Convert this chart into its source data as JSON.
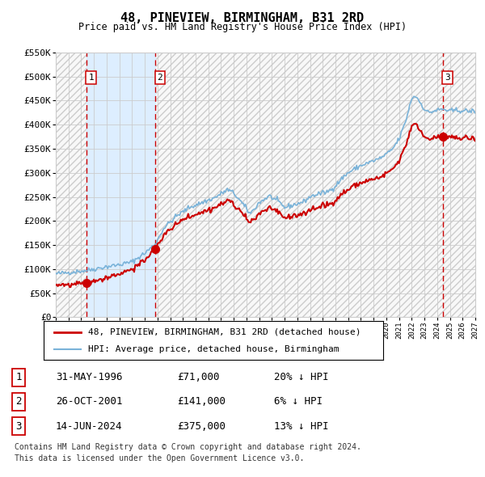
{
  "title": "48, PINEVIEW, BIRMINGHAM, B31 2RD",
  "subtitle": "Price paid vs. HM Land Registry's House Price Index (HPI)",
  "ylabel_ticks": [
    "£0",
    "£50K",
    "£100K",
    "£150K",
    "£200K",
    "£250K",
    "£300K",
    "£350K",
    "£400K",
    "£450K",
    "£500K",
    "£550K"
  ],
  "ytick_values": [
    0,
    50000,
    100000,
    150000,
    200000,
    250000,
    300000,
    350000,
    400000,
    450000,
    500000,
    550000
  ],
  "xmin": 1994,
  "xmax": 2027,
  "ymin": 0,
  "ymax": 550000,
  "purchases": [
    {
      "num": 1,
      "date": "31-MAY-1996",
      "year": 1996.41,
      "price": 71000,
      "hpi_str": "20% ↓ HPI"
    },
    {
      "num": 2,
      "date": "26-OCT-2001",
      "year": 2001.82,
      "price": 141000,
      "hpi_str": "6% ↓ HPI"
    },
    {
      "num": 3,
      "date": "14-JUN-2024",
      "year": 2024.45,
      "price": 375000,
      "hpi_str": "13% ↓ HPI"
    }
  ],
  "legend_line1": "48, PINEVIEW, BIRMINGHAM, B31 2RD (detached house)",
  "legend_line2": "HPI: Average price, detached house, Birmingham",
  "legend_color1": "#cc0000",
  "legend_color2": "#7ab3d9",
  "footer_line1": "Contains HM Land Registry data © Crown copyright and database right 2024.",
  "footer_line2": "This data is licensed under the Open Government Licence v3.0.",
  "bg_color": "#ffffff",
  "grid_color": "#cccccc",
  "shaded_color": "#ddeeff",
  "red_color": "#cc0000",
  "blue_color": "#7ab3d9",
  "hatch_color": "#cccccc"
}
